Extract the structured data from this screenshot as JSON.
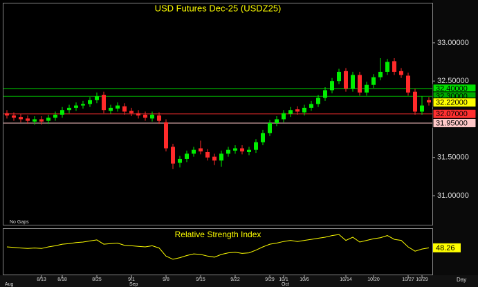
{
  "chart_data": {
    "type": "candlestick",
    "title": "USD Futures Dec-25 (USDZ25)",
    "categories": [
      null,
      null,
      null,
      null,
      null,
      "8/13",
      null,
      null,
      "8/18",
      null,
      null,
      null,
      null,
      "8/25",
      null,
      null,
      null,
      null,
      "9/1",
      null,
      null,
      null,
      null,
      "9/8",
      null,
      null,
      null,
      null,
      "9/15",
      null,
      null,
      null,
      null,
      "9/22",
      null,
      null,
      null,
      null,
      "9/29",
      null,
      "10/1",
      null,
      null,
      "10/6",
      null,
      null,
      null,
      null,
      null,
      "10/14",
      null,
      null,
      null,
      "10/20",
      null,
      null,
      null,
      null,
      "10/27",
      null,
      "10/29",
      null
    ],
    "months": [
      "Aug",
      null,
      null,
      null,
      null,
      null,
      null,
      null,
      null,
      null,
      null,
      null,
      null,
      null,
      null,
      null,
      null,
      null,
      "Sep",
      null,
      null,
      null,
      null,
      null,
      null,
      null,
      null,
      null,
      null,
      null,
      null,
      null,
      null,
      null,
      null,
      null,
      null,
      null,
      null,
      null,
      "Oct",
      null,
      null,
      null,
      null,
      null,
      null,
      null,
      null,
      null,
      null,
      null,
      null,
      null,
      null,
      null,
      null,
      null,
      null,
      null,
      null,
      null
    ],
    "open": [
      32.08,
      32.05,
      32.03,
      32.01,
      31.97,
      32.0,
      31.98,
      32.02,
      32.06,
      32.12,
      32.15,
      32.18,
      32.2,
      32.25,
      32.32,
      32.11,
      32.14,
      32.17,
      32.11,
      32.08,
      32.06,
      32.01,
      32.05,
      31.96,
      31.64,
      31.43,
      31.48,
      31.55,
      31.62,
      31.57,
      31.51,
      31.46,
      31.55,
      31.59,
      31.62,
      31.57,
      31.6,
      31.7,
      31.82,
      31.95,
      32.0,
      32.07,
      32.13,
      32.09,
      32.15,
      32.2,
      32.28,
      32.38,
      32.5,
      32.63,
      32.4,
      32.58,
      32.35,
      32.45,
      32.55,
      32.62,
      32.76,
      32.63,
      32.57,
      32.36,
      32.1,
      32.25
    ],
    "high": [
      32.12,
      32.09,
      32.07,
      32.05,
      32.04,
      32.04,
      32.06,
      32.1,
      32.16,
      32.19,
      32.22,
      32.24,
      32.29,
      32.35,
      32.36,
      32.19,
      32.22,
      32.21,
      32.15,
      32.12,
      32.1,
      32.1,
      32.09,
      32.0,
      31.68,
      31.52,
      31.59,
      31.64,
      31.72,
      31.61,
      31.55,
      31.59,
      31.64,
      31.66,
      31.66,
      31.64,
      31.74,
      31.86,
      31.99,
      32.04,
      32.12,
      32.16,
      32.17,
      32.19,
      32.24,
      32.32,
      32.42,
      32.54,
      32.66,
      32.67,
      32.62,
      32.62,
      32.49,
      32.59,
      32.8,
      32.79,
      32.8,
      32.67,
      32.61,
      32.4,
      32.3,
      32.29
    ],
    "low": [
      32.01,
      31.98,
      31.96,
      31.94,
      31.93,
      31.93,
      31.94,
      31.98,
      32.02,
      32.08,
      32.11,
      32.14,
      32.16,
      32.21,
      32.08,
      32.07,
      32.1,
      32.06,
      32.04,
      32.01,
      31.98,
      31.97,
      31.94,
      31.58,
      31.35,
      31.37,
      31.44,
      31.51,
      31.54,
      31.46,
      31.4,
      31.38,
      31.51,
      31.55,
      31.54,
      31.53,
      31.56,
      31.66,
      31.78,
      31.91,
      31.96,
      32.03,
      32.06,
      32.05,
      32.11,
      32.16,
      32.24,
      32.34,
      32.46,
      32.36,
      32.36,
      32.31,
      32.31,
      32.41,
      32.51,
      32.58,
      32.58,
      32.54,
      32.31,
      32.06,
      32.06,
      32.18
    ],
    "close": [
      32.05,
      32.02,
      32.0,
      31.98,
      32.0,
      31.97,
      32.02,
      32.06,
      32.12,
      32.15,
      32.18,
      32.2,
      32.25,
      32.3,
      32.12,
      32.15,
      32.18,
      32.1,
      32.08,
      32.05,
      32.02,
      32.06,
      31.98,
      31.62,
      31.42,
      31.48,
      31.55,
      31.6,
      31.58,
      31.5,
      31.46,
      31.55,
      31.6,
      31.62,
      31.58,
      31.6,
      31.7,
      31.82,
      31.95,
      32.0,
      32.08,
      32.12,
      32.1,
      32.15,
      32.2,
      32.28,
      32.38,
      32.5,
      32.62,
      32.4,
      32.58,
      32.35,
      32.45,
      32.55,
      32.62,
      32.75,
      32.62,
      32.58,
      32.35,
      32.1,
      32.18,
      32.22
    ],
    "up_color": "#00ee00",
    "down_color": "#ff2a2a",
    "ylim": [
      30.62,
      33.515
    ],
    "yticks": [
      {
        "value": 31,
        "label": "31.00000"
      },
      {
        "value": 31.5,
        "label": "31.50000"
      },
      {
        "value": 32.5,
        "label": "32.50000"
      },
      {
        "value": 33,
        "label": "33.00000"
      }
    ],
    "grid": false,
    "levels": [
      {
        "value": 32.4,
        "label": "32.40000",
        "color": "#00dd00",
        "line": true
      },
      {
        "value": 32.3,
        "label": "32.30000",
        "color": "#00aa00",
        "line": true
      },
      {
        "value": 32.22,
        "label": "32.22000",
        "color": "#ffff00",
        "line": false
      },
      {
        "value": 32.07,
        "label": "32.07000",
        "color": "#ff3030",
        "line": true
      },
      {
        "value": 31.95,
        "label": "31.95000",
        "color": "#ffc8c8",
        "line": true
      }
    ],
    "footnote": "No Gaps",
    "period": "Day",
    "rsi": {
      "title": "Relative Strength Index",
      "color": "#ffff00",
      "ylim": [
        0,
        100
      ],
      "values": [
        50,
        49,
        48,
        47,
        48,
        47,
        50,
        52,
        55,
        56,
        58,
        59,
        61,
        63,
        55,
        56,
        57,
        53,
        52,
        51,
        50,
        52,
        48,
        33,
        27,
        30,
        34,
        37,
        36,
        33,
        31,
        36,
        39,
        40,
        38,
        39,
        44,
        50,
        55,
        57,
        60,
        62,
        60,
        62,
        64,
        66,
        68,
        71,
        73,
        62,
        68,
        59,
        62,
        65,
        67,
        71,
        64,
        62,
        50,
        42,
        46,
        48.26
      ]
    }
  }
}
